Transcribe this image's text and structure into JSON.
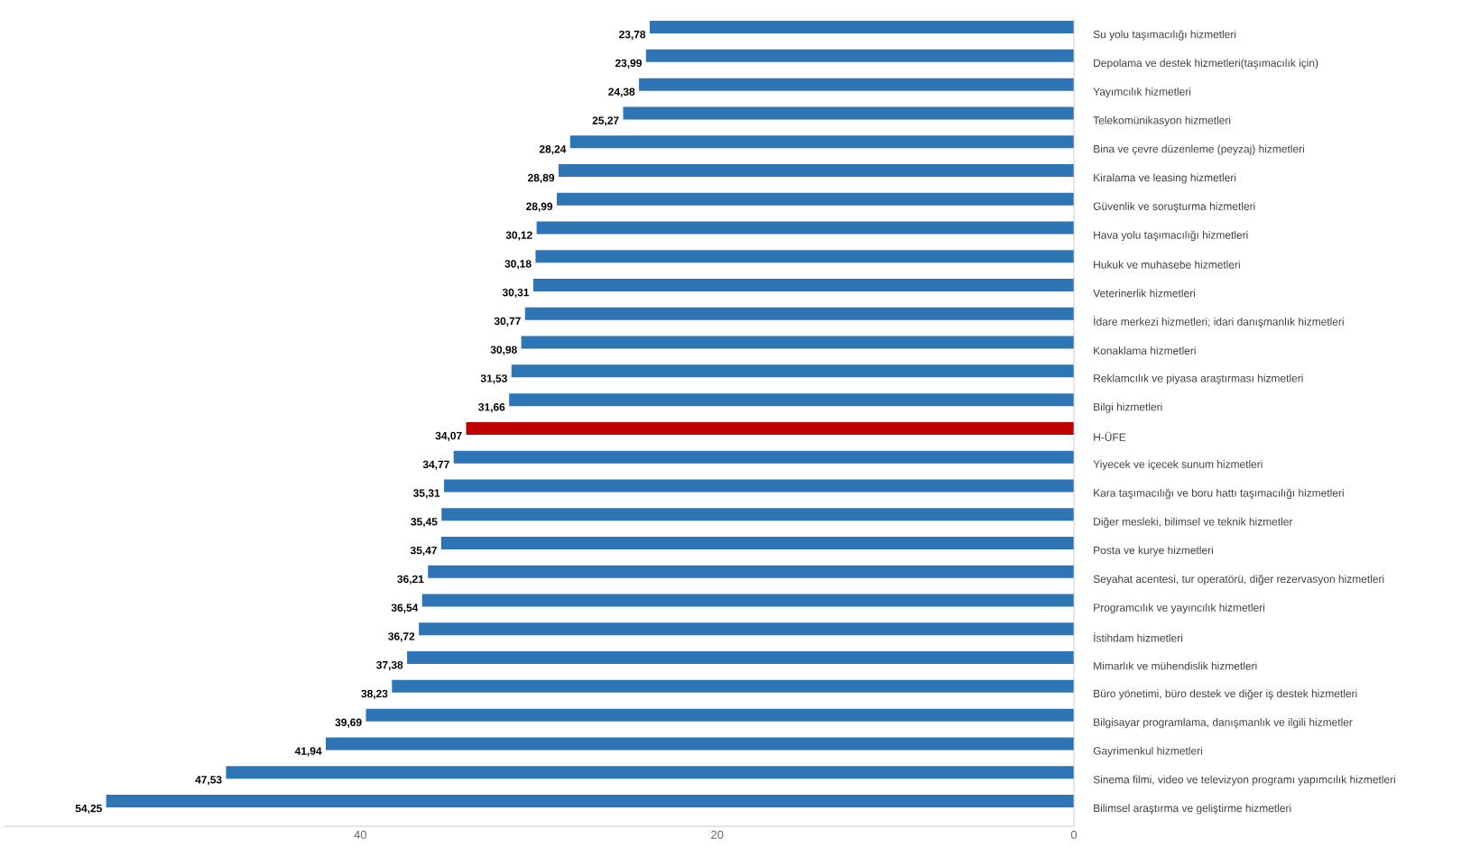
{
  "chart_data": {
    "type": "bar",
    "orientation": "horizontal",
    "categories": [
      "Su yolu taşımacılığı hizmetleri",
      "Depolama ve destek hizmetleri(taşımacılık için)",
      "Yayımcılık hizmetleri",
      "Telekomünikasyon hizmetleri",
      "Bina ve çevre düzenleme (peyzaj) hizmetleri",
      "Kiralama ve leasing hizmetleri",
      "Güvenlik ve soruşturma hizmetleri",
      "Hava yolu taşımacılığı hizmetleri",
      "Hukuk ve muhasebe hizmetleri",
      "Veterinerlik hizmetleri",
      "İdare merkezi hizmetleri; idari danışmanlık hizmetleri",
      "Konaklama hizmetleri",
      "Reklamcılık ve piyasa araştırması hizmetleri",
      "Bilgi hizmetleri",
      "H-ÜFE",
      "Yiyecek ve içecek sunum hizmetleri",
      "Kara taşımacılığı ve boru hattı taşımacılığı hizmetleri",
      "Diğer mesleki, bilimsel ve teknik hizmetler",
      "Posta ve kurye hizmetleri",
      "Seyahat acentesi, tur operatörü, diğer rezervasyon hizmetleri",
      "Programcılık ve yayıncılık hizmetleri",
      "İstihdam hizmetleri",
      "Mimarlık ve mühendislik hizmetleri",
      "Büro yönetimi, büro destek ve diğer iş destek hizmetleri",
      "Bilgisayar programlama, danışmanlık ve ilgili hizmetler",
      "Gayrimenkul hizmetleri",
      "Sinema filmi, video ve televizyon programı yapımcılık hizmetleri",
      "Bilimsel araştırma ve geliştirme hizmetleri"
    ],
    "values": [
      23.78,
      23.99,
      24.38,
      25.27,
      28.24,
      28.89,
      28.99,
      30.12,
      30.18,
      30.31,
      30.77,
      30.98,
      31.53,
      31.66,
      34.07,
      34.77,
      35.31,
      35.45,
      35.47,
      36.21,
      36.54,
      36.72,
      37.38,
      38.23,
      39.69,
      41.94,
      47.53,
      54.25
    ],
    "value_labels": [
      "23,78",
      "23,99",
      "24,38",
      "25,27",
      "28,24",
      "28,89",
      "28,99",
      "30,12",
      "30,18",
      "30,31",
      "30,77",
      "30,98",
      "31,53",
      "31,66",
      "34,07",
      "34,77",
      "35,31",
      "35,45",
      "35,47",
      "36,21",
      "36,54",
      "36,72",
      "37,38",
      "38,23",
      "39,69",
      "41,94",
      "47,53",
      "54,25"
    ],
    "colors": [
      "#2e75b6",
      "#2e75b6",
      "#2e75b6",
      "#2e75b6",
      "#2e75b6",
      "#2e75b6",
      "#2e75b6",
      "#2e75b6",
      "#2e75b6",
      "#2e75b6",
      "#2e75b6",
      "#2e75b6",
      "#2e75b6",
      "#2e75b6",
      "#c00000",
      "#2e75b6",
      "#2e75b6",
      "#2e75b6",
      "#2e75b6",
      "#2e75b6",
      "#2e75b6",
      "#2e75b6",
      "#2e75b6",
      "#2e75b6",
      "#2e75b6",
      "#2e75b6",
      "#2e75b6",
      "#2e75b6"
    ],
    "xlim": [
      60,
      0
    ],
    "xticks": [
      0,
      20,
      40
    ]
  }
}
